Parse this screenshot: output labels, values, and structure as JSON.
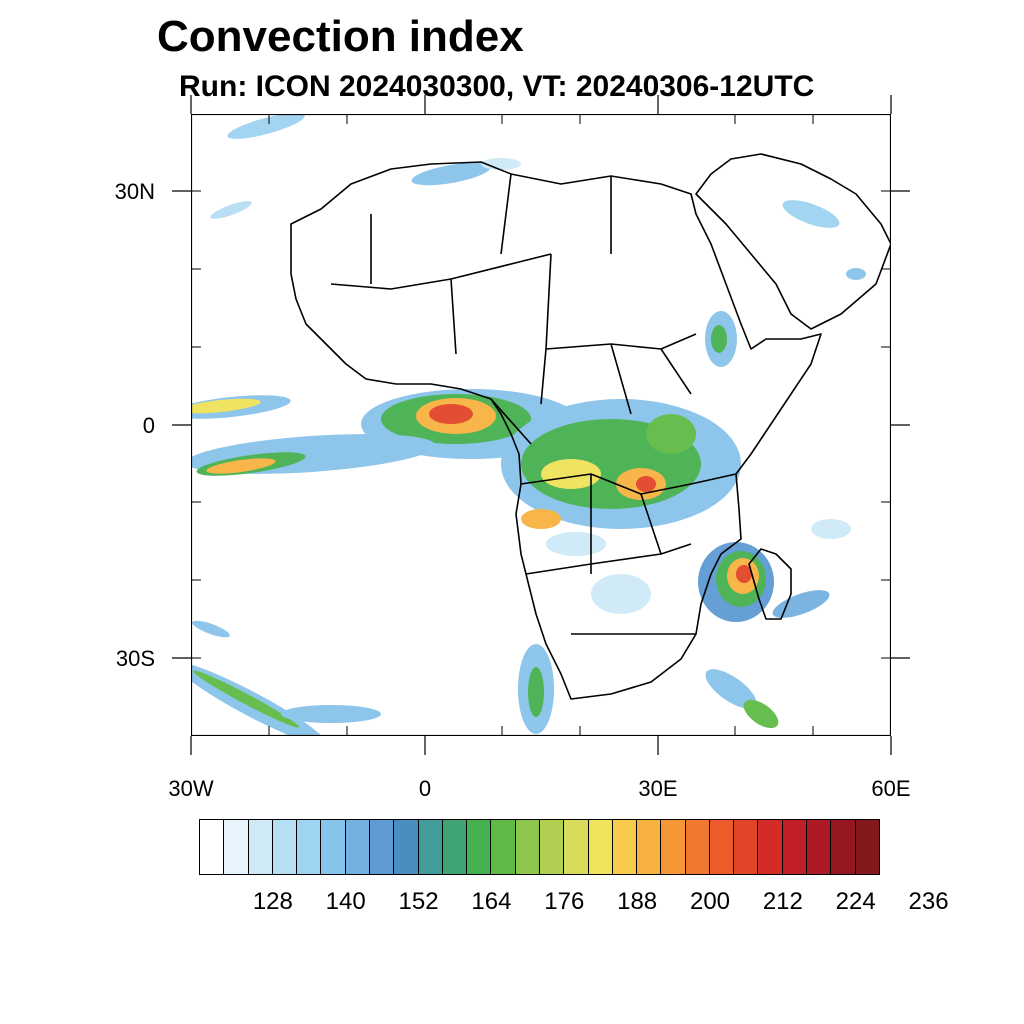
{
  "title": "Convection index",
  "subtitle": "Run: ICON 2024030300,  VT: 20240306-12UTC",
  "map": {
    "lat_labels": [
      "30N",
      "0",
      "30S"
    ],
    "lon_labels": [
      "30W",
      "0",
      "30E",
      "60E"
    ]
  },
  "colorbar": {
    "colors": [
      "#ffffff",
      "#e8f4fb",
      "#cfe9f7",
      "#b6def4",
      "#9fd3f2",
      "#88c3ea",
      "#74b0e0",
      "#5e9ad3",
      "#4a8ec1",
      "#419c9a",
      "#3fa374",
      "#45b04f",
      "#5fbb46",
      "#8dc54d",
      "#b1d052",
      "#d7dd5a",
      "#f0e25a",
      "#f8cb4c",
      "#f7b141",
      "#f59637",
      "#f1782f",
      "#eb5c2a",
      "#e14527",
      "#d32c26",
      "#c01f28",
      "#ac1b25",
      "#951820",
      "#84181c"
    ],
    "labels": [
      "128",
      "140",
      "152",
      "164",
      "176",
      "188",
      "200",
      "212",
      "224",
      "236"
    ]
  }
}
